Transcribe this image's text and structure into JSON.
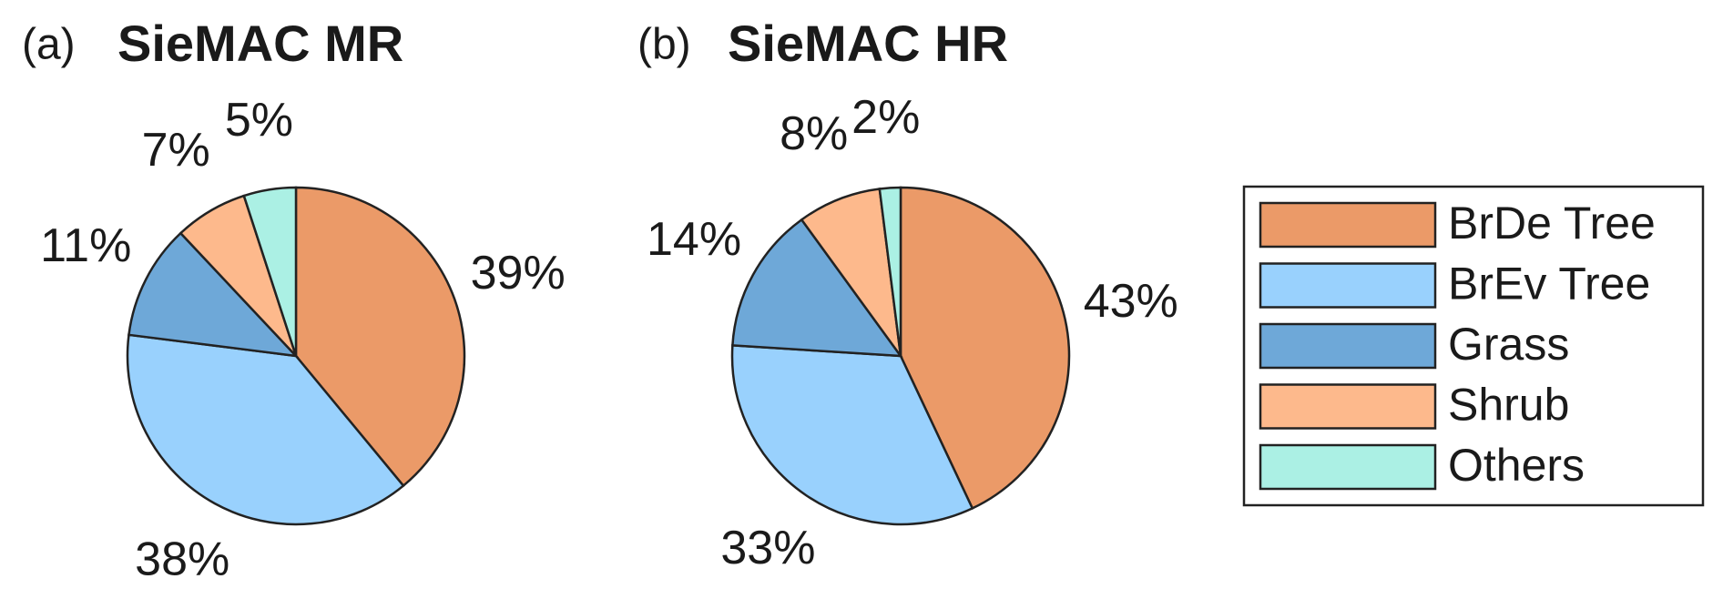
{
  "chart_data": [
    {
      "type": "pie",
      "panel_label": "(a)",
      "title": "SieMAC MR",
      "categories": [
        "BrDe Tree",
        "BrEv Tree",
        "Grass",
        "Shrub",
        "Others"
      ],
      "values": [
        39,
        38,
        11,
        7,
        5
      ],
      "value_labels": [
        "39%",
        "38%",
        "11%",
        "7%",
        "5%"
      ],
      "colors": [
        "#eb9a68",
        "#99d1fd",
        "#6ea8d8",
        "#fdb98c",
        "#abf0e4"
      ]
    },
    {
      "type": "pie",
      "panel_label": "(b)",
      "title": "SieMAC HR",
      "categories": [
        "BrDe Tree",
        "BrEv Tree",
        "Grass",
        "Shrub",
        "Others"
      ],
      "values": [
        43,
        33,
        14,
        8,
        2
      ],
      "value_labels": [
        "43%",
        "33%",
        "14%",
        "8%",
        "2%"
      ],
      "colors": [
        "#eb9a68",
        "#99d1fd",
        "#6ea8d8",
        "#fdb98c",
        "#abf0e4"
      ]
    }
  ]
}
